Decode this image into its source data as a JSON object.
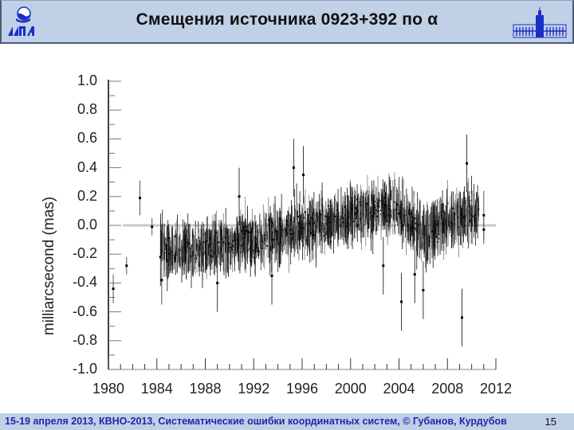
{
  "header": {
    "title": "Смещения источника 0923+392 по α",
    "logo_left": "ipa-logo",
    "logo_right": "institute-building-logo"
  },
  "footer": {
    "text": "15-19  апреля  2013,  КВНО-2013,  Систематические ошибки координатных систем, © Губанов, Курдубов",
    "page": "15"
  },
  "colors": {
    "header_bg": "#c0d0e6",
    "header_border": "#4a5d7a",
    "footer_text": "#1b2aa8",
    "zero_line": "#c8c8c8",
    "data": "#111111"
  },
  "chart_data": {
    "type": "scatter",
    "title": "Смещения источника 0923+392 по α",
    "xlabel": "",
    "ylabel": "milliarcsecond (mas)",
    "xlim": [
      1980,
      2012
    ],
    "ylim": [
      -1.0,
      1.0
    ],
    "xticks": [
      "1980",
      "1984",
      "1988",
      "1992",
      "1996",
      "2000",
      "2004",
      "2008",
      "2012"
    ],
    "yticks": [
      "1.0",
      "0.8",
      "0.6",
      "0.4",
      "0.2",
      "0.0",
      "-0.2",
      "-0.4",
      "-0.6",
      "-0.8",
      "-1.0"
    ],
    "error_bars": true,
    "reference_line": 0.0,
    "trend_description": "Dense daily offsets with error bars; mean ≈ -0.15 mas 1984–1990, rising to ≈ 0 by 1998, ≈ +0.12 mas 2001–2005, ≈ 0 to -0.05 mas 2005–2008, ≈ +0.1 mas 2008–2010",
    "sparse_points": [
      {
        "x": 1980.4,
        "y": -0.44,
        "err": 0.1
      },
      {
        "x": 1981.5,
        "y": -0.28,
        "err": 0.06
      },
      {
        "x": 1982.6,
        "y": 0.19,
        "err": 0.12
      },
      {
        "x": 1983.6,
        "y": -0.01,
        "err": 0.06
      },
      {
        "x": 1984.4,
        "y": -0.38,
        "err": 0.17
      },
      {
        "x": 2011.0,
        "y": 0.07,
        "err": 0.17
      },
      {
        "x": 2011.0,
        "y": -0.03,
        "err": 0.1
      }
    ],
    "trend": [
      {
        "x": 1984.3,
        "y": -0.1
      },
      {
        "x": 1985.0,
        "y": -0.18
      },
      {
        "x": 1986.0,
        "y": -0.2
      },
      {
        "x": 1987.0,
        "y": -0.17
      },
      {
        "x": 1988.0,
        "y": -0.16
      },
      {
        "x": 1989.0,
        "y": -0.13
      },
      {
        "x": 1990.0,
        "y": -0.16
      },
      {
        "x": 1991.0,
        "y": -0.1
      },
      {
        "x": 1992.0,
        "y": -0.12
      },
      {
        "x": 1993.0,
        "y": -0.07
      },
      {
        "x": 1994.0,
        "y": -0.06
      },
      {
        "x": 1995.0,
        "y": -0.04
      },
      {
        "x": 1996.0,
        "y": -0.03
      },
      {
        "x": 1997.0,
        "y": -0.01
      },
      {
        "x": 1998.0,
        "y": 0.0
      },
      {
        "x": 1999.0,
        "y": 0.03
      },
      {
        "x": 2000.0,
        "y": 0.06
      },
      {
        "x": 2001.0,
        "y": 0.09
      },
      {
        "x": 2002.0,
        "y": 0.11
      },
      {
        "x": 2003.0,
        "y": 0.13
      },
      {
        "x": 2004.0,
        "y": 0.12
      },
      {
        "x": 2005.0,
        "y": 0.02
      },
      {
        "x": 2006.0,
        "y": -0.06
      },
      {
        "x": 2007.0,
        "y": -0.02
      },
      {
        "x": 2008.0,
        "y": 0.03
      },
      {
        "x": 2009.0,
        "y": 0.06
      },
      {
        "x": 2010.0,
        "y": 0.09
      },
      {
        "x": 2010.6,
        "y": 0.08
      }
    ],
    "outliers": [
      {
        "x": 1984.3,
        "y": -0.22
      },
      {
        "x": 1989.0,
        "y": -0.4
      },
      {
        "x": 1990.8,
        "y": 0.2
      },
      {
        "x": 1993.5,
        "y": -0.35
      },
      {
        "x": 1995.3,
        "y": 0.4
      },
      {
        "x": 1996.1,
        "y": 0.35
      },
      {
        "x": 2002.7,
        "y": -0.28
      },
      {
        "x": 2004.2,
        "y": -0.53
      },
      {
        "x": 2005.3,
        "y": -0.34
      },
      {
        "x": 2006.0,
        "y": -0.45
      },
      {
        "x": 2009.2,
        "y": -0.64
      },
      {
        "x": 2009.6,
        "y": 0.43
      }
    ]
  }
}
